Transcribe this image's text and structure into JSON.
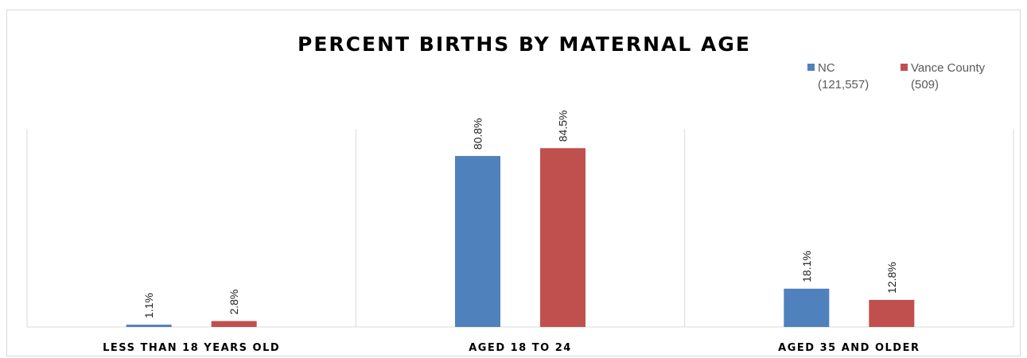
{
  "chart_data": {
    "type": "bar",
    "title": "PERCENT BIRTHS BY MATERNAL AGE",
    "categories": [
      "LESS THAN 18 YEARS OLD",
      "AGED 18 TO 24",
      "AGED 35 AND OLDER"
    ],
    "series": [
      {
        "name": "NC (121,557)",
        "legend_lines": [
          "NC",
          "(121,557)"
        ],
        "color": "#4f81bd",
        "values": [
          1.1,
          80.8,
          18.1
        ],
        "labels": [
          "1.1%",
          "80.8%",
          "18.1%"
        ]
      },
      {
        "name": "Vance County (509)",
        "legend_lines": [
          "Vance County",
          "(509)"
        ],
        "color": "#c0504d",
        "values": [
          2.8,
          84.5,
          12.8
        ],
        "labels": [
          "2.8%",
          "84.5%",
          "12.8%"
        ]
      }
    ],
    "ylim": [
      0,
      100
    ],
    "grid": false,
    "category_dividers": true,
    "legend_position": "top-right",
    "data_label_orientation": "vertical"
  }
}
